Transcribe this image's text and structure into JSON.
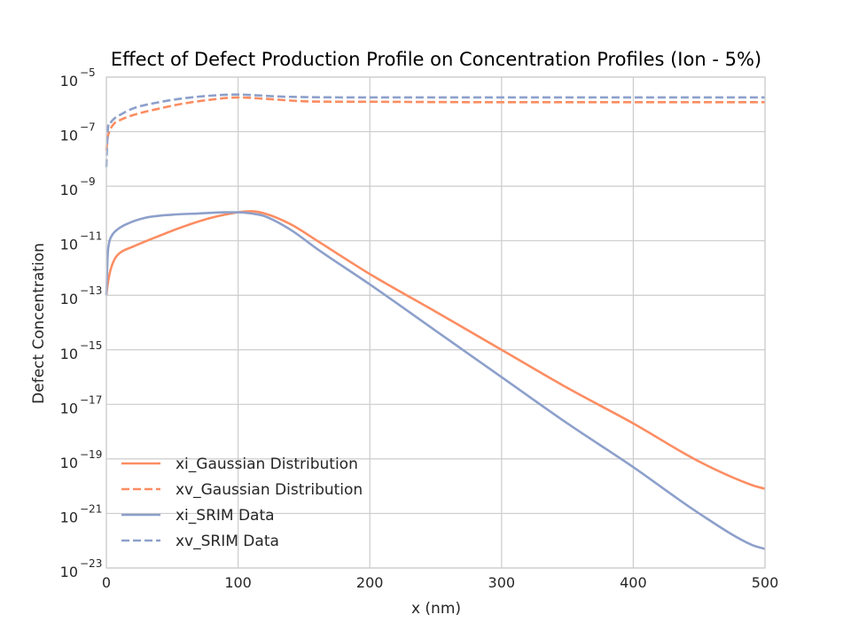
{
  "chart_data": {
    "type": "line",
    "title": "Effect of Defect Production Profile on Concentration Profiles (Ion - 5%)",
    "xlabel": "x (nm)",
    "ylabel": "Defect Concentration",
    "xlim": [
      0,
      500
    ],
    "ylim_exponents": [
      -23,
      -5
    ],
    "yscale": "log",
    "grid": true,
    "legend_placement": "lower-left",
    "x_ticks": [
      "0",
      "100",
      "200",
      "300",
      "400",
      "500"
    ],
    "y_tick_exponents": [
      "-23",
      "-21",
      "-19",
      "-17",
      "-15",
      "-13",
      "-11",
      "-9",
      "-7",
      "-5"
    ],
    "colors": {
      "gaussian": "#fc8d62",
      "srim": "#8da0cb",
      "grid": "#cccccc"
    },
    "series": [
      {
        "name": "xi_Gaussian Distribution",
        "style": "solid",
        "color": "#fc8d62",
        "x": [
          0,
          1,
          3,
          6,
          10,
          20,
          40,
          60,
          80,
          100,
          110,
          120,
          140,
          160,
          200,
          250,
          300,
          350,
          400,
          450,
          490,
          500
        ],
        "y": [
          1e-13,
          2.5e-13,
          8e-13,
          2e-12,
          3.5e-12,
          6e-12,
          1.5e-11,
          3.5e-11,
          7e-11,
          1.1e-10,
          1.2e-10,
          1e-10,
          4e-11,
          1e-11,
          6e-13,
          2.5e-14,
          1e-15,
          4e-17,
          2e-18,
          8e-20,
          1.1e-20,
          8e-21
        ]
      },
      {
        "name": "xv_Gaussian Distribution",
        "style": "dashed",
        "color": "#fc8d62",
        "x": [
          0,
          1,
          3,
          6,
          10,
          20,
          40,
          60,
          80,
          100,
          120,
          150,
          200,
          300,
          400,
          500
        ],
        "y": [
          2e-08,
          6e-08,
          1.2e-07,
          2e-07,
          2.6e-07,
          4e-07,
          7e-07,
          1.1e-06,
          1.5e-06,
          1.8e-06,
          1.6e-06,
          1.3e-06,
          1.25e-06,
          1.2e-06,
          1.2e-06,
          1.2e-06
        ]
      },
      {
        "name": "xi_SRIM Data",
        "style": "solid",
        "color": "#8da0cb",
        "x": [
          0,
          1,
          2,
          4,
          8,
          15,
          30,
          50,
          70,
          90,
          100,
          110,
          120,
          140,
          160,
          200,
          250,
          300,
          350,
          400,
          450,
          490,
          500
        ],
        "y": [
          1e-13,
          3e-12,
          8e-12,
          1.5e-11,
          2.5e-11,
          4e-11,
          7e-11,
          9e-11,
          1e-10,
          1.1e-10,
          1.1e-10,
          1e-10,
          8e-11,
          2.5e-11,
          5e-12,
          2.5e-13,
          5e-15,
          1e-16,
          2e-18,
          5e-20,
          1e-21,
          7e-23,
          5e-23
        ]
      },
      {
        "name": "xv_SRIM Data",
        "style": "dashed",
        "color": "#8da0cb",
        "x": [
          0,
          1,
          3,
          6,
          10,
          20,
          40,
          60,
          80,
          100,
          110,
          130,
          150,
          200,
          300,
          400,
          500
        ],
        "y": [
          5e-09,
          1e-07,
          2e-07,
          3e-07,
          4e-07,
          7e-07,
          1.2e-06,
          1.7e-06,
          2.1e-06,
          2.3e-06,
          2.2e-06,
          1.95e-06,
          1.85e-06,
          1.8e-06,
          1.8e-06,
          1.8e-06,
          1.8e-06
        ]
      }
    ]
  }
}
